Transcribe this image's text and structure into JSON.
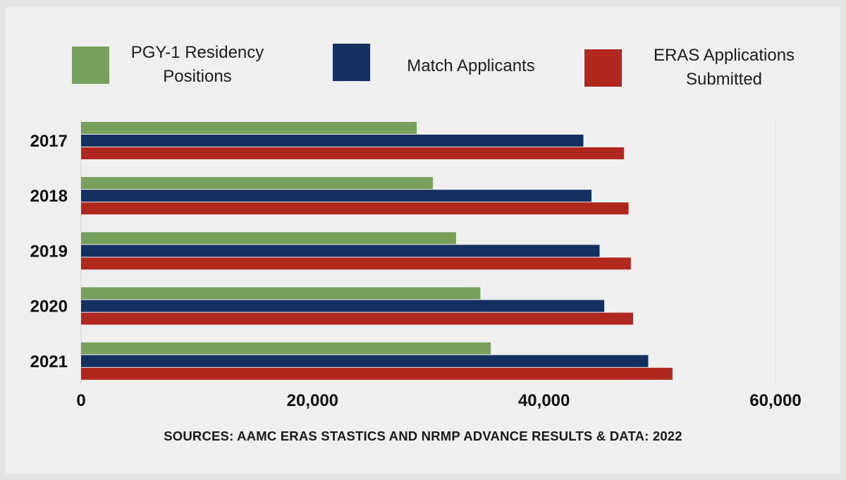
{
  "chart_data": {
    "type": "bar",
    "orientation": "horizontal",
    "categories": [
      "2017",
      "2018",
      "2019",
      "2020",
      "2021"
    ],
    "series": [
      {
        "name": "PGY-1 Residency Positions",
        "color": "#77a05d",
        "values": [
          29000,
          30400,
          32400,
          34500,
          35400
        ]
      },
      {
        "name": "Match Applicants",
        "color": "#143060",
        "values": [
          43400,
          44100,
          44800,
          45200,
          49000
        ]
      },
      {
        "name": "ERAS Applications Submitted",
        "color": "#b0271d",
        "values": [
          46900,
          47300,
          47500,
          47700,
          51100
        ]
      }
    ],
    "xlim": [
      0,
      60000
    ],
    "xticks": [
      0,
      20000,
      40000,
      60000
    ],
    "xtick_labels": [
      "0",
      "20,000",
      "40,000",
      "60,000"
    ],
    "legend_position": "top",
    "grid": false
  },
  "legend": [
    {
      "label_line1": "PGY-1 Residency",
      "label_line2": "Positions"
    },
    {
      "label_line1": "Match Applicants",
      "label_line2": ""
    },
    {
      "label_line1": "ERAS Applications",
      "label_line2": "Submitted"
    }
  ],
  "source_text": "SOURCES: AAMC ERAS STASTICS AND NRMP ADVANCE RESULTS & DATA: 2022"
}
